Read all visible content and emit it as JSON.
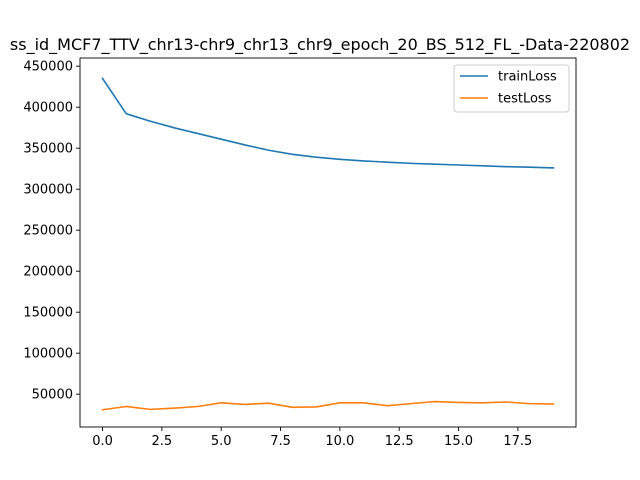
{
  "chart_data": {
    "type": "line",
    "title": "ss_id_MCF7_TTV_chr13-chr9_chr13_chr9_epoch_20_BS_512_FL_-Data-220802",
    "xlabel": "",
    "ylabel": "",
    "xlim": [
      -0.95,
      19.95
    ],
    "ylim": [
      10000,
      460000
    ],
    "xticks": [
      0.0,
      2.5,
      5.0,
      7.5,
      10.0,
      12.5,
      15.0,
      17.5
    ],
    "xtick_labels": [
      "0.0",
      "2.5",
      "5.0",
      "7.5",
      "10.0",
      "12.5",
      "15.0",
      "17.5"
    ],
    "yticks": [
      50000,
      100000,
      150000,
      200000,
      250000,
      300000,
      350000,
      400000,
      450000
    ],
    "ytick_labels": [
      "50000",
      "100000",
      "150000",
      "200000",
      "250000",
      "300000",
      "350000",
      "400000",
      "450000"
    ],
    "grid": false,
    "legend_position": "top-right",
    "x": [
      0,
      1,
      2,
      3,
      4,
      5,
      6,
      7,
      8,
      9,
      10,
      11,
      12,
      13,
      14,
      15,
      16,
      17,
      18,
      19
    ],
    "series": [
      {
        "name": "trainLoss",
        "color": "#1f77b4",
        "values": [
          435000,
          392000,
          383000,
          375000,
          368000,
          361000,
          354000,
          347500,
          342500,
          339000,
          336500,
          334500,
          333000,
          331500,
          330500,
          329500,
          328500,
          327500,
          326800,
          326000
        ]
      },
      {
        "name": "testLoss",
        "color": "#ff7f0e",
        "values": [
          31000,
          35000,
          31500,
          33000,
          35000,
          39500,
          37500,
          39000,
          34000,
          34500,
          39500,
          39500,
          36000,
          38500,
          41000,
          40000,
          39500,
          40500,
          38500,
          38000
        ]
      }
    ]
  }
}
